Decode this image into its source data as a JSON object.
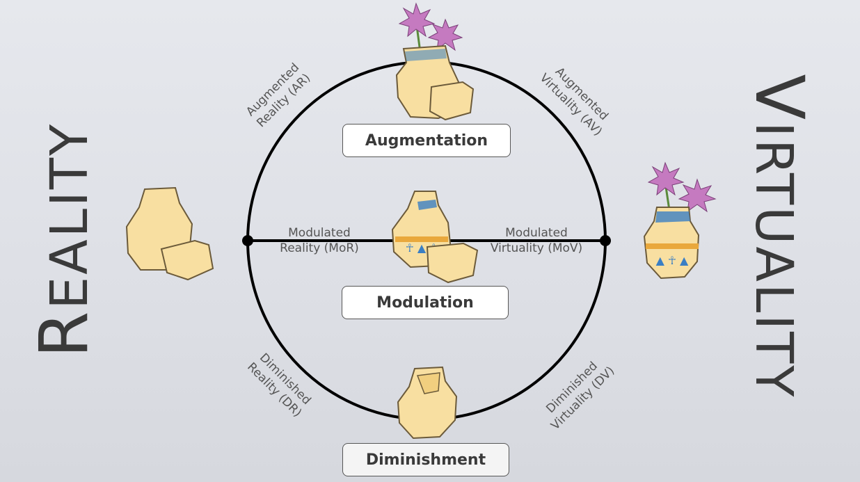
{
  "sides": {
    "reality": {
      "initial": "R",
      "rest": "EALITY"
    },
    "virtuality": {
      "initial": "V",
      "rest": "IRTUALITY"
    }
  },
  "boxes": {
    "augmentation": "Augmentation",
    "modulation": "Modulation",
    "diminishment": "Diminishment"
  },
  "labels": {
    "ar": {
      "line1": "Augmented",
      "line2": "Reality (AR)"
    },
    "av": {
      "line1": "Augmented",
      "line2": "Virtuality (AV)"
    },
    "mor": {
      "line1": "Modulated",
      "line2": "Reality (MoR)"
    },
    "mov": {
      "line1": "Modulated",
      "line2": "Virtuality (MoV)"
    },
    "dr": {
      "line1": "Diminished",
      "line2": "Reality (DR)"
    },
    "dv": {
      "line1": "Diminished",
      "line2": "Virtuality (DV)"
    }
  },
  "colors": {
    "vase_fill": "#f8dfa1",
    "vase_outline": "#6b5a3a",
    "flower_pink": "#c57ac0",
    "pattern_blue": "#3b7fc4",
    "pattern_orange": "#e9a83c",
    "circle_stroke": "#000000"
  },
  "icons": [
    "broken-vase-icon",
    "vase-with-flowers-icon",
    "decorated-broken-vase-icon",
    "flower-icon"
  ]
}
